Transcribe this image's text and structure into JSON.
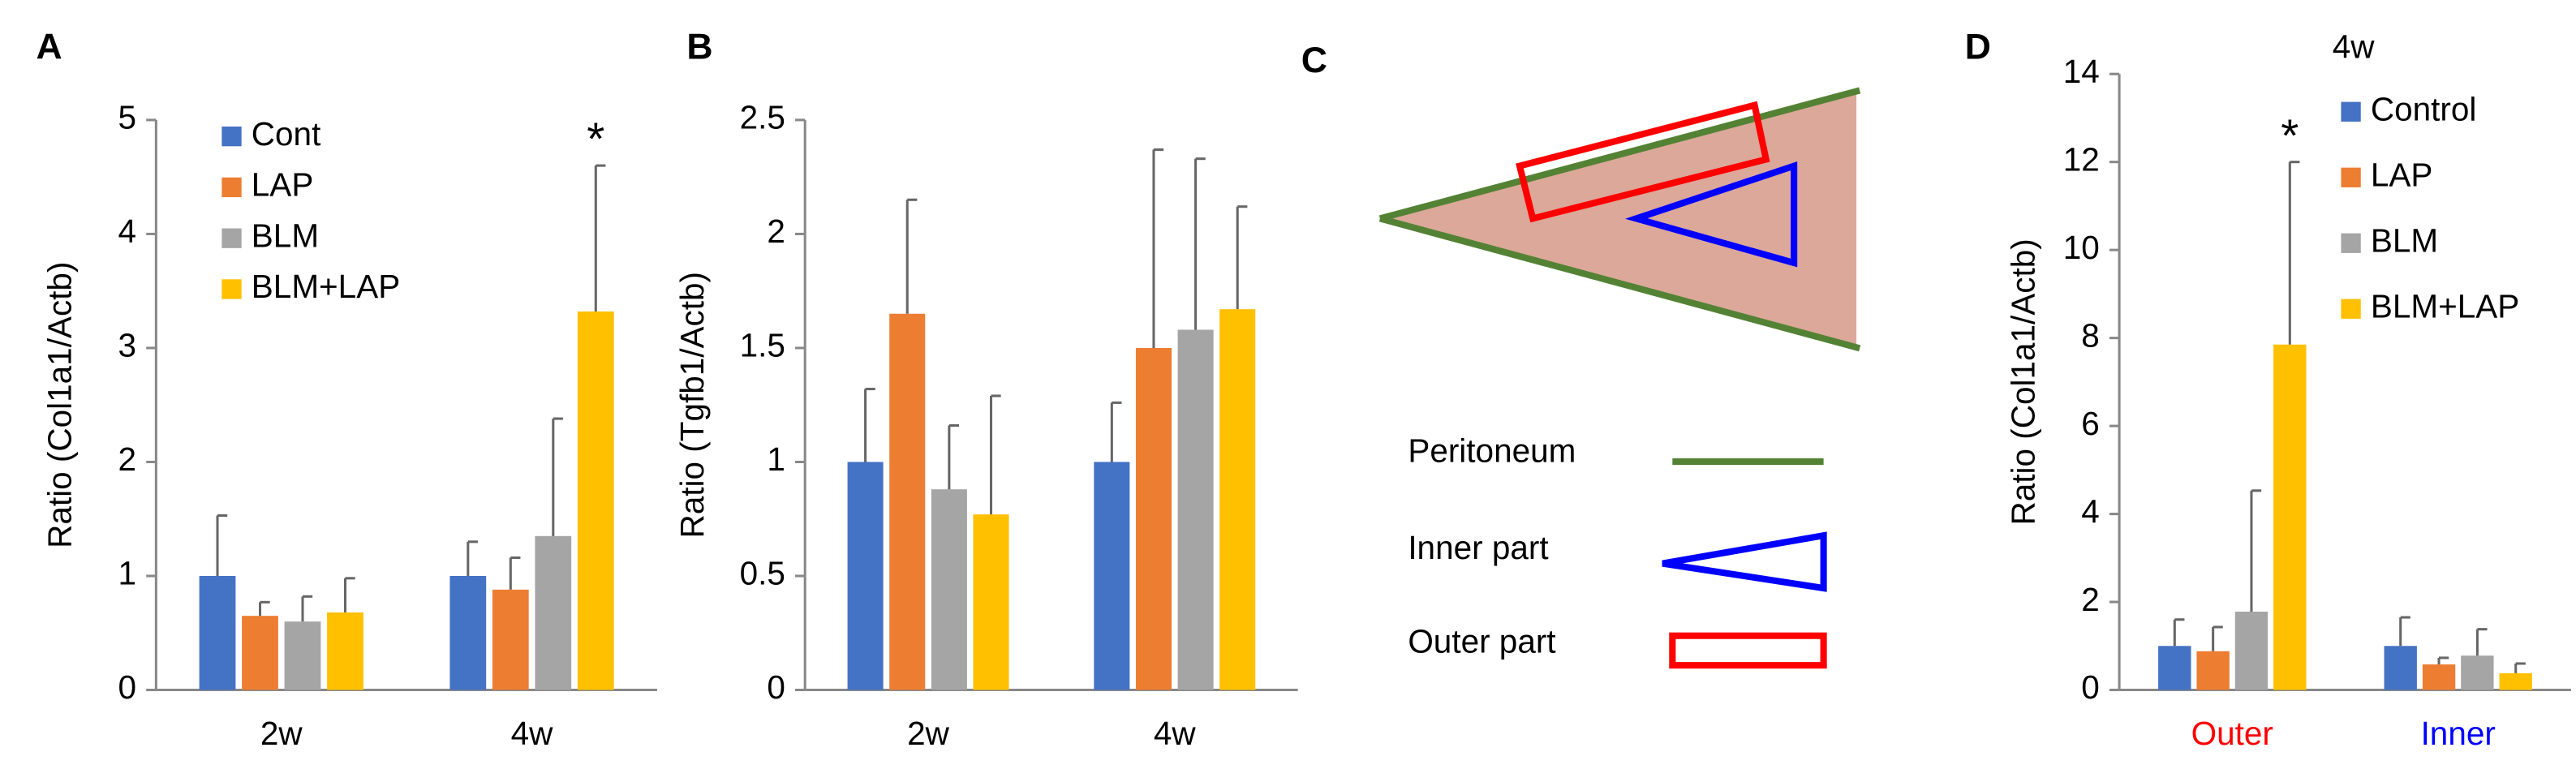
{
  "chart_data": [
    {
      "type": "bar",
      "panel": "A",
      "y_label": "Ratio (Col1a1/Actb)",
      "categories": [
        "2w",
        "4w"
      ],
      "ylim": [
        0,
        5
      ],
      "yticks": [
        0,
        1,
        2,
        3,
        4,
        5
      ],
      "annotation": "*",
      "series": [
        {
          "name": "Cont",
          "color": "#4472c4",
          "values": [
            1.0,
            1.0
          ],
          "errors": [
            0.53,
            0.3
          ]
        },
        {
          "name": "LAP",
          "color": "#ed7d31",
          "values": [
            0.65,
            0.88
          ],
          "errors": [
            0.12,
            0.28
          ]
        },
        {
          "name": "BLM",
          "color": "#a5a5a5",
          "values": [
            0.6,
            1.35
          ],
          "errors": [
            0.22,
            1.03
          ]
        },
        {
          "name": "BLM+LAP",
          "color": "#ffc000",
          "values": [
            0.68,
            3.32
          ],
          "errors": [
            0.3,
            1.28
          ]
        }
      ]
    },
    {
      "type": "bar",
      "panel": "B",
      "y_label": "Ratio (Tgfb1/Actb)",
      "categories": [
        "2w",
        "4w"
      ],
      "ylim": [
        0,
        2.5
      ],
      "yticks": [
        0,
        0.5,
        1,
        1.5,
        2,
        2.5
      ],
      "series": [
        {
          "color": "#4472c4",
          "values": [
            1.0,
            1.0
          ],
          "errors": [
            0.32,
            0.26
          ]
        },
        {
          "color": "#ed7d31",
          "values": [
            1.65,
            1.5
          ],
          "errors": [
            0.5,
            0.87
          ]
        },
        {
          "color": "#a5a5a5",
          "values": [
            0.88,
            1.58
          ],
          "errors": [
            0.28,
            0.75
          ]
        },
        {
          "color": "#ffc000",
          "values": [
            0.77,
            1.67
          ],
          "errors": [
            0.52,
            0.45
          ]
        }
      ]
    },
    {
      "type": "bar",
      "panel": "D",
      "title": "4w",
      "y_label": "Ratio (Col1a1/Actb)",
      "categories": [
        "Outer",
        "Inner"
      ],
      "category_colors": [
        "#ff0000",
        "#0000ff"
      ],
      "ylim": [
        0,
        14
      ],
      "yticks": [
        0,
        2,
        4,
        6,
        8,
        10,
        12,
        14
      ],
      "annotation": "*",
      "series": [
        {
          "name": "Control",
          "color": "#4472c4",
          "values": [
            1.0,
            1.0
          ],
          "errors": [
            0.6,
            0.65
          ]
        },
        {
          "name": "LAP",
          "color": "#ed7d31",
          "values": [
            0.88,
            0.58
          ],
          "errors": [
            0.55,
            0.15
          ]
        },
        {
          "name": "BLM",
          "color": "#a5a5a5",
          "values": [
            1.78,
            0.78
          ],
          "errors": [
            2.75,
            0.6
          ]
        },
        {
          "name": "BLM+LAP",
          "color": "#ffc000",
          "values": [
            7.85,
            0.38
          ],
          "errors": [
            4.15,
            0.22
          ]
        }
      ]
    }
  ],
  "diagram": {
    "panel": "C",
    "legend": [
      "Peritoneum",
      "Inner part",
      "Outer part"
    ]
  }
}
